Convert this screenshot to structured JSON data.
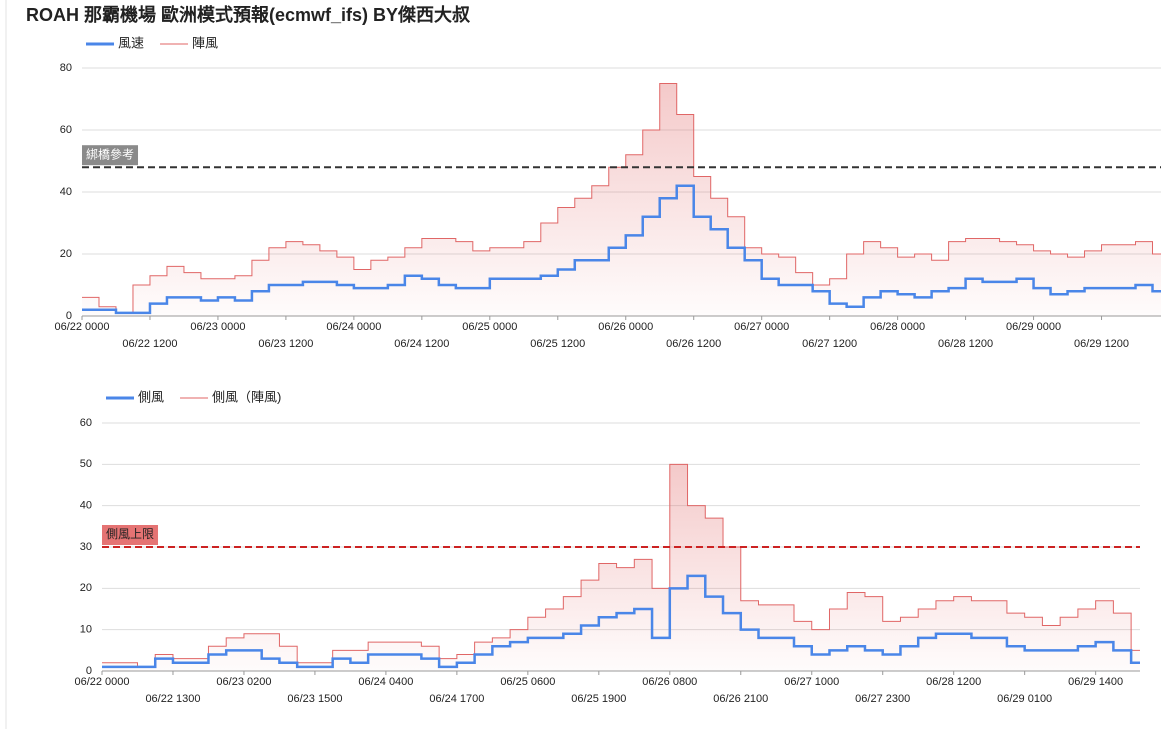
{
  "title": "ROAH 那霸機場 歐洲模式預報(ecmwf_ifs) BY傑西大叔",
  "chart_data": [
    {
      "type": "step",
      "ylim": [
        0,
        80
      ],
      "yticks": [
        0,
        20,
        40,
        60,
        80
      ],
      "grid": true,
      "reference": {
        "value": 48,
        "label": "綁橋參考",
        "color": "#333333",
        "label_bg": "#8a8a8a"
      },
      "categories": [
        "06/22 0000",
        null,
        null,
        null,
        "06/22 1200",
        null,
        null,
        null,
        "06/23 0000",
        null,
        null,
        null,
        "06/23 1200",
        null,
        null,
        null,
        "06/24 0000",
        null,
        null,
        null,
        "06/24 1200",
        null,
        null,
        null,
        "06/25 0000",
        null,
        null,
        null,
        "06/25 1200",
        null,
        null,
        null,
        "06/26 0000",
        null,
        null,
        null,
        "06/26 1200",
        null,
        null,
        null,
        "06/27 0000",
        null,
        null,
        null,
        "06/27 1200",
        null,
        null,
        null,
        "06/28 0000",
        null,
        null,
        null,
        "06/28 1200",
        null,
        null,
        null,
        "06/29 0000",
        null,
        null,
        null,
        "06/29 1200",
        null,
        null,
        null
      ],
      "series": [
        {
          "name": "風速",
          "color": "#4a86e8",
          "values": [
            2,
            2,
            1,
            1,
            4,
            6,
            6,
            5,
            6,
            5,
            8,
            10,
            10,
            11,
            11,
            10,
            9,
            9,
            10,
            13,
            12,
            10,
            9,
            9,
            12,
            12,
            12,
            13,
            15,
            18,
            18,
            22,
            26,
            32,
            38,
            42,
            32,
            28,
            22,
            18,
            12,
            10,
            10,
            8,
            4,
            3,
            6,
            8,
            7,
            6,
            8,
            9,
            12,
            11,
            11,
            12,
            9,
            7,
            8,
            9,
            9,
            9,
            10,
            8
          ]
        },
        {
          "name": "陣風",
          "color": "#e06666",
          "fill": true,
          "values": [
            6,
            3,
            1,
            10,
            13,
            16,
            14,
            12,
            12,
            13,
            18,
            22,
            24,
            23,
            21,
            19,
            15,
            18,
            19,
            22,
            25,
            25,
            24,
            21,
            22,
            22,
            24,
            30,
            35,
            38,
            42,
            48,
            52,
            60,
            75,
            65,
            45,
            38,
            32,
            22,
            20,
            19,
            14,
            10,
            12,
            20,
            24,
            22,
            19,
            20,
            18,
            24,
            25,
            25,
            24,
            23,
            21,
            20,
            19,
            21,
            23,
            23,
            24,
            20
          ]
        }
      ]
    },
    {
      "type": "step",
      "ylim": [
        0,
        60
      ],
      "yticks": [
        0,
        10,
        20,
        30,
        40,
        50,
        60
      ],
      "grid": true,
      "reference": {
        "value": 30,
        "label": "側風上限",
        "color": "#cc2222",
        "label_bg": "#e57373"
      },
      "categories": [
        "06/22 0000",
        null,
        null,
        null,
        "06/22 1300",
        null,
        null,
        null,
        "06/23 0200",
        null,
        null,
        null,
        "06/23 1500",
        null,
        null,
        null,
        "06/24 0400",
        null,
        null,
        null,
        "06/24 1700",
        null,
        null,
        null,
        "06/25 0600",
        null,
        null,
        null,
        "06/25 1900",
        null,
        null,
        null,
        "06/26 0800",
        null,
        null,
        null,
        "06/26 2100",
        null,
        null,
        null,
        "06/27 1000",
        null,
        null,
        null,
        "06/27 2300",
        null,
        null,
        null,
        "06/28 1200",
        null,
        null,
        null,
        "06/29 0100",
        null,
        null,
        null,
        "06/29 1400",
        null,
        null
      ],
      "series": [
        {
          "name": "側風",
          "color": "#4a86e8",
          "values": [
            1,
            1,
            1,
            3,
            2,
            2,
            4,
            5,
            5,
            3,
            2,
            1,
            1,
            3,
            2,
            4,
            4,
            4,
            3,
            1,
            2,
            4,
            6,
            7,
            8,
            8,
            9,
            11,
            13,
            14,
            15,
            8,
            20,
            23,
            18,
            14,
            10,
            8,
            8,
            6,
            4,
            5,
            6,
            5,
            4,
            6,
            8,
            9,
            9,
            8,
            8,
            6,
            5,
            5,
            5,
            6,
            7,
            5,
            2
          ]
        },
        {
          "name": "側風（陣風)",
          "color": "#e06666",
          "fill": true,
          "values": [
            2,
            2,
            1,
            4,
            3,
            3,
            6,
            8,
            9,
            9,
            6,
            2,
            2,
            5,
            5,
            7,
            7,
            7,
            6,
            3,
            4,
            7,
            8,
            10,
            13,
            15,
            18,
            22,
            26,
            25,
            27,
            20,
            50,
            40,
            37,
            30,
            17,
            16,
            16,
            12,
            10,
            15,
            19,
            18,
            12,
            13,
            15,
            17,
            18,
            17,
            17,
            14,
            13,
            11,
            13,
            15,
            17,
            14,
            5
          ]
        }
      ]
    }
  ]
}
